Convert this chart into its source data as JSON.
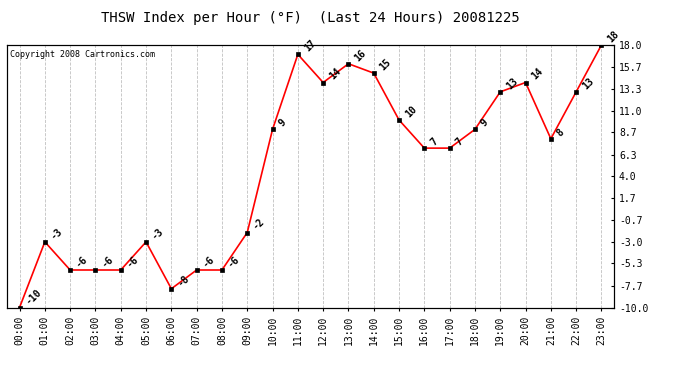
{
  "title": "THSW Index per Hour (°F)  (Last 24 Hours) 20081225",
  "copyright": "Copyright 2008 Cartronics.com",
  "hours": [
    0,
    1,
    2,
    3,
    4,
    5,
    6,
    7,
    8,
    9,
    10,
    11,
    12,
    13,
    14,
    15,
    16,
    17,
    18,
    19,
    20,
    21,
    22,
    23
  ],
  "values": [
    -10,
    -3,
    -6,
    -6,
    -6,
    -3,
    -8,
    -6,
    -6,
    -2,
    9,
    17,
    14,
    16,
    15,
    10,
    7,
    7,
    9,
    13,
    14,
    8,
    13,
    18
  ],
  "yticks": [
    18.0,
    15.7,
    13.3,
    11.0,
    8.7,
    6.3,
    4.0,
    1.7,
    -0.7,
    -3.0,
    -5.3,
    -7.7,
    -10.0
  ],
  "ylim": [
    -10.0,
    18.0
  ],
  "line_color": "#FF0000",
  "marker_color": "#FF0000",
  "bg_color": "#FFFFFF",
  "grid_color": "#C0C0C0",
  "title_fontsize": 10,
  "annotation_fontsize": 7,
  "tick_fontsize": 7,
  "copyright_fontsize": 6
}
